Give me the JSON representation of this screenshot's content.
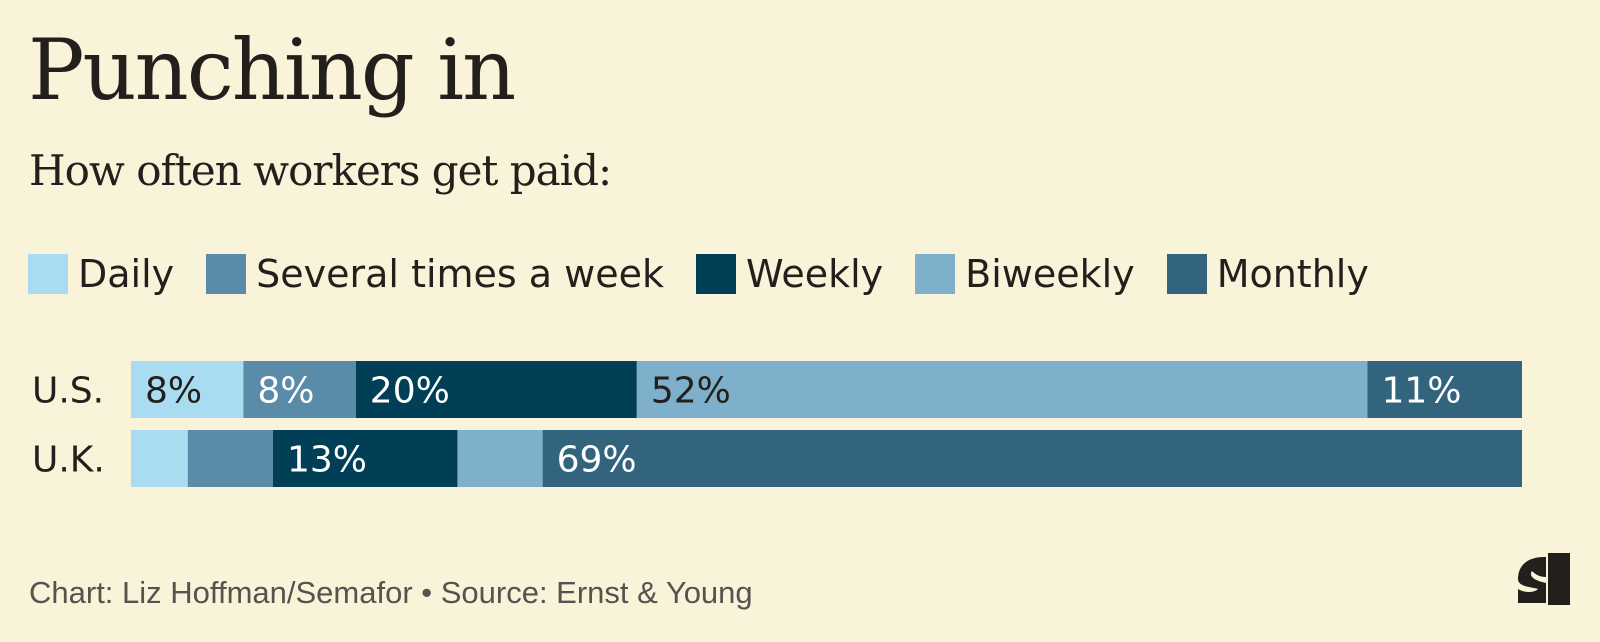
{
  "header": {
    "title": "Punching in",
    "subtitle": "How often workers get paid:"
  },
  "legend": [
    {
      "label": "Daily",
      "color": "#a9dcf0"
    },
    {
      "label": "Several times a week",
      "color": "#5a8ba8"
    },
    {
      "label": "Weekly",
      "color": "#013f57"
    },
    {
      "label": "Biweekly",
      "color": "#7fb0cb"
    },
    {
      "label": "Monthly",
      "color": "#33647e"
    }
  ],
  "footer": {
    "credit": "Chart: Liz Hoffman/Semafor • Source: Ernst & Young"
  },
  "logo": {
    "icon": "semafor-logo-icon"
  },
  "chart_data": {
    "type": "bar",
    "orientation": "horizontal",
    "stacked": true,
    "categories": [
      "U.S.",
      "U.K."
    ],
    "series": [
      {
        "name": "Daily",
        "values": [
          8,
          4
        ],
        "labels": [
          "8%",
          ""
        ]
      },
      {
        "name": "Several times a week",
        "values": [
          8,
          6
        ],
        "labels": [
          "8%",
          ""
        ]
      },
      {
        "name": "Weekly",
        "values": [
          20,
          13
        ],
        "labels": [
          "20%",
          "13%"
        ]
      },
      {
        "name": "Biweekly",
        "values": [
          52,
          6
        ],
        "labels": [
          "52%",
          ""
        ]
      },
      {
        "name": "Monthly",
        "values": [
          11,
          69
        ],
        "labels": [
          "11%",
          "69%"
        ]
      }
    ],
    "xlim": [
      0,
      100
    ],
    "grid": false,
    "legend_position": "top"
  }
}
